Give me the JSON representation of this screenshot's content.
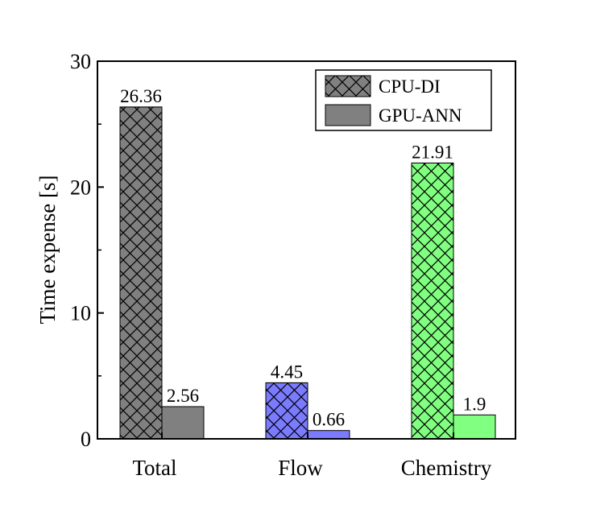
{
  "chart_data": {
    "type": "bar",
    "title": "",
    "xlabel": "",
    "ylabel": "Time expense [s]",
    "ylim": [
      0,
      30
    ],
    "yticks": [
      0,
      10,
      20,
      30
    ],
    "grid": false,
    "legend_position": "top-right",
    "categories": [
      "Total",
      "Flow",
      "Chemistry"
    ],
    "category_colors": [
      "#808080",
      "#7b7bff",
      "#80ff80"
    ],
    "series": [
      {
        "name": "CPU-DI",
        "pattern": "crosshatch",
        "values": [
          26.36,
          4.45,
          21.91
        ],
        "labels": [
          "26.36",
          "4.45",
          "21.91"
        ]
      },
      {
        "name": "GPU-ANN",
        "pattern": "solid",
        "values": [
          2.56,
          0.66,
          1.9
        ],
        "labels": [
          "2.56",
          "0.66",
          "1.9"
        ]
      }
    ]
  }
}
